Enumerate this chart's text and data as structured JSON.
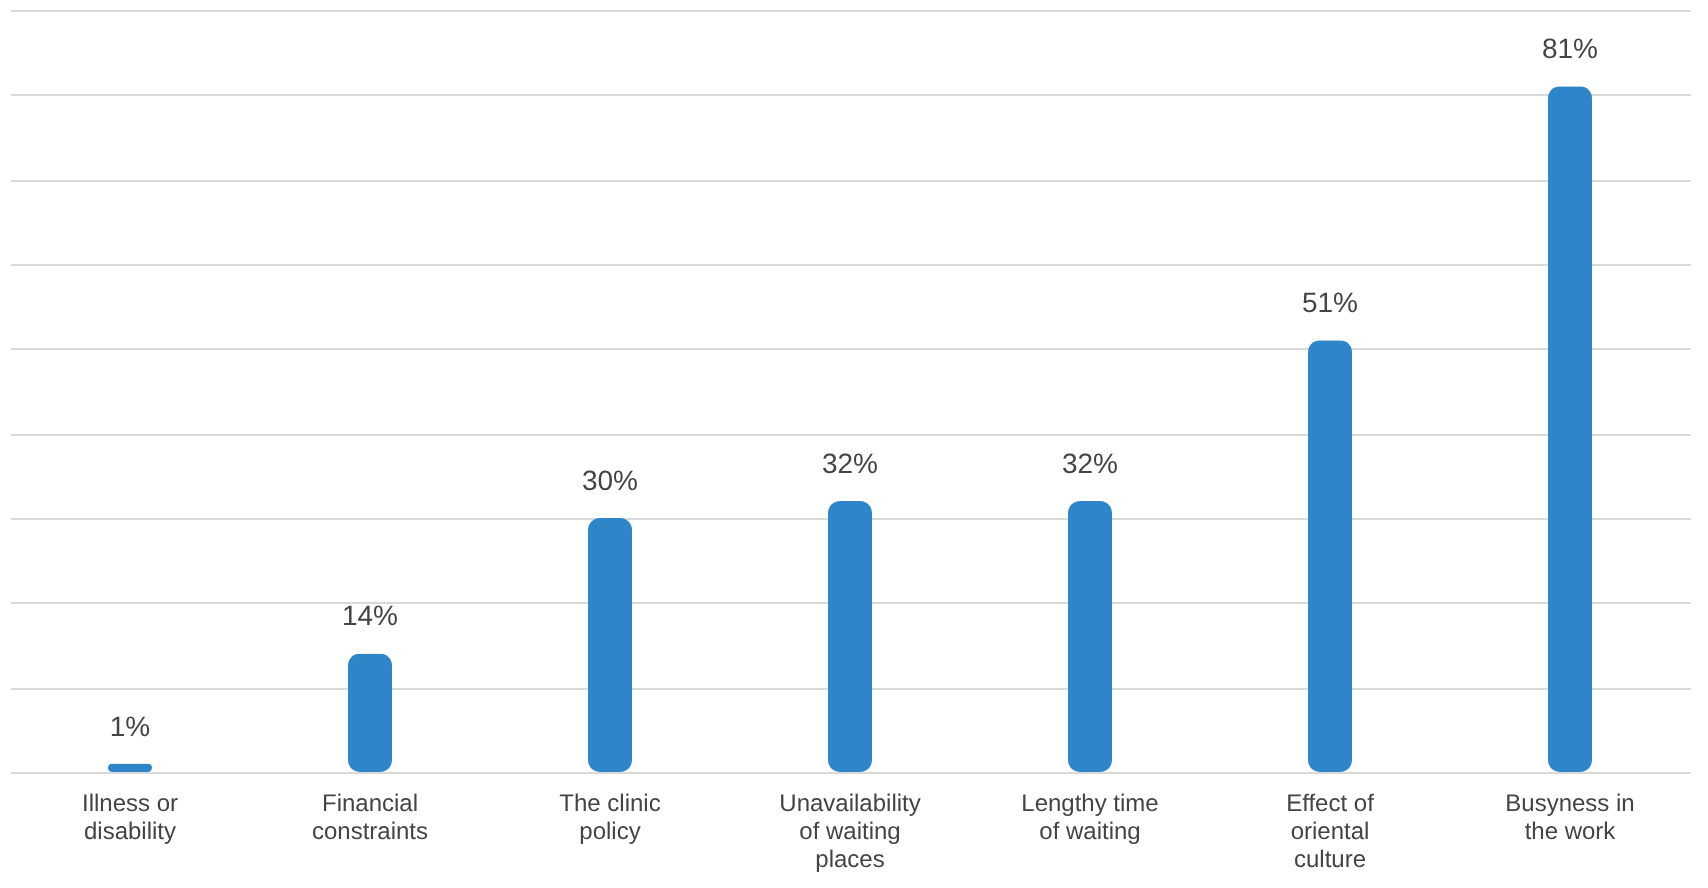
{
  "chart_data": {
    "type": "bar",
    "categories": [
      "Illness or disability",
      "Financial constraints",
      "The clinic policy",
      "Unavailability of waiting places",
      "Lengthy time of waiting",
      "Effect of oriental culture",
      "Busyness in the work"
    ],
    "values": [
      1,
      14,
      30,
      32,
      32,
      51,
      81
    ],
    "value_labels": [
      "1%",
      "14%",
      "30%",
      "32%",
      "32%",
      "51%",
      "81%"
    ],
    "color": "#2e86c8",
    "yticks": [
      {
        "value": 0,
        "label": null
      },
      {
        "value": 10,
        "label": null
      },
      {
        "value": 20,
        "label": null
      },
      {
        "value": 30,
        "label": null
      },
      {
        "value": 40,
        "label": null
      },
      {
        "value": 50,
        "label": null
      },
      {
        "value": 60,
        "label": null
      },
      {
        "value": 70,
        "label": null
      },
      {
        "value": 80,
        "label": null
      },
      {
        "value": 90,
        "label": null
      }
    ],
    "grid": "y",
    "tick_labels": "x"
  }
}
